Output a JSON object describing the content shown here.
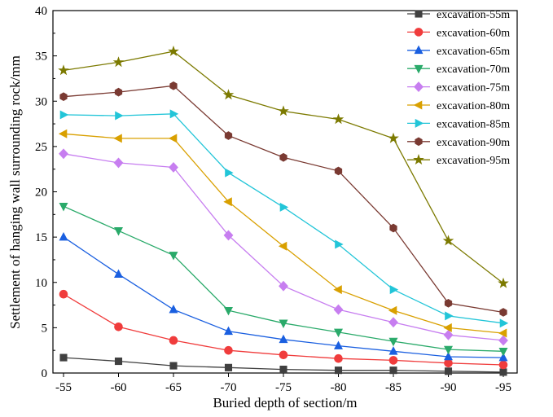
{
  "chart_data": {
    "type": "line",
    "xlabel": "Buried depth of section/m",
    "ylabel": "Settlement of hanging wall surrounding rock/mm",
    "categories": [
      "-55",
      "-60",
      "-65",
      "-70",
      "-75",
      "-80",
      "-85",
      "-90",
      "-95"
    ],
    "ylim": [
      0,
      40
    ],
    "yticks": [
      "0",
      "5",
      "10",
      "15",
      "20",
      "25",
      "30",
      "35",
      "40"
    ],
    "grid": false,
    "legend_position": "top-right",
    "series": [
      {
        "name": "excavation-55m",
        "marker": "square",
        "color": "#404040",
        "values": [
          1.7,
          1.3,
          0.8,
          0.6,
          0.4,
          0.3,
          0.3,
          0.2,
          0.1
        ]
      },
      {
        "name": "excavation-60m",
        "marker": "circle",
        "color": "#f03c3c",
        "values": [
          8.7,
          5.1,
          3.6,
          2.5,
          2.0,
          1.6,
          1.4,
          1.1,
          0.9
        ]
      },
      {
        "name": "excavation-65m",
        "marker": "triangle-up",
        "color": "#1a5fe0",
        "values": [
          15.0,
          10.9,
          7.0,
          4.6,
          3.7,
          3.0,
          2.4,
          1.8,
          1.7
        ]
      },
      {
        "name": "excavation-70m",
        "marker": "triangle-down",
        "color": "#2aaa6a",
        "values": [
          18.4,
          15.7,
          13.0,
          6.9,
          5.5,
          4.5,
          3.5,
          2.6,
          2.4
        ]
      },
      {
        "name": "excavation-75m",
        "marker": "diamond",
        "color": "#c77ef0",
        "values": [
          24.2,
          23.2,
          22.7,
          15.2,
          9.6,
          7.0,
          5.6,
          4.2,
          3.6
        ]
      },
      {
        "name": "excavation-80m",
        "marker": "triangle-left",
        "color": "#d9a000",
        "values": [
          26.4,
          25.9,
          25.9,
          18.9,
          14.0,
          9.2,
          6.9,
          5.0,
          4.4
        ]
      },
      {
        "name": "excavation-85m",
        "marker": "triangle-right",
        "color": "#22c5d8",
        "values": [
          28.5,
          28.4,
          28.6,
          22.1,
          18.3,
          14.2,
          9.2,
          6.3,
          5.5
        ]
      },
      {
        "name": "excavation-90m",
        "marker": "hexagon",
        "color": "#7a3a32",
        "values": [
          30.5,
          31.0,
          31.7,
          26.2,
          23.8,
          22.3,
          16.0,
          7.7,
          6.7
        ]
      },
      {
        "name": "excavation-95m",
        "marker": "star",
        "color": "#7c7a00",
        "values": [
          33.4,
          34.3,
          35.5,
          30.7,
          28.9,
          28.0,
          25.9,
          14.6,
          9.9
        ]
      }
    ]
  }
}
